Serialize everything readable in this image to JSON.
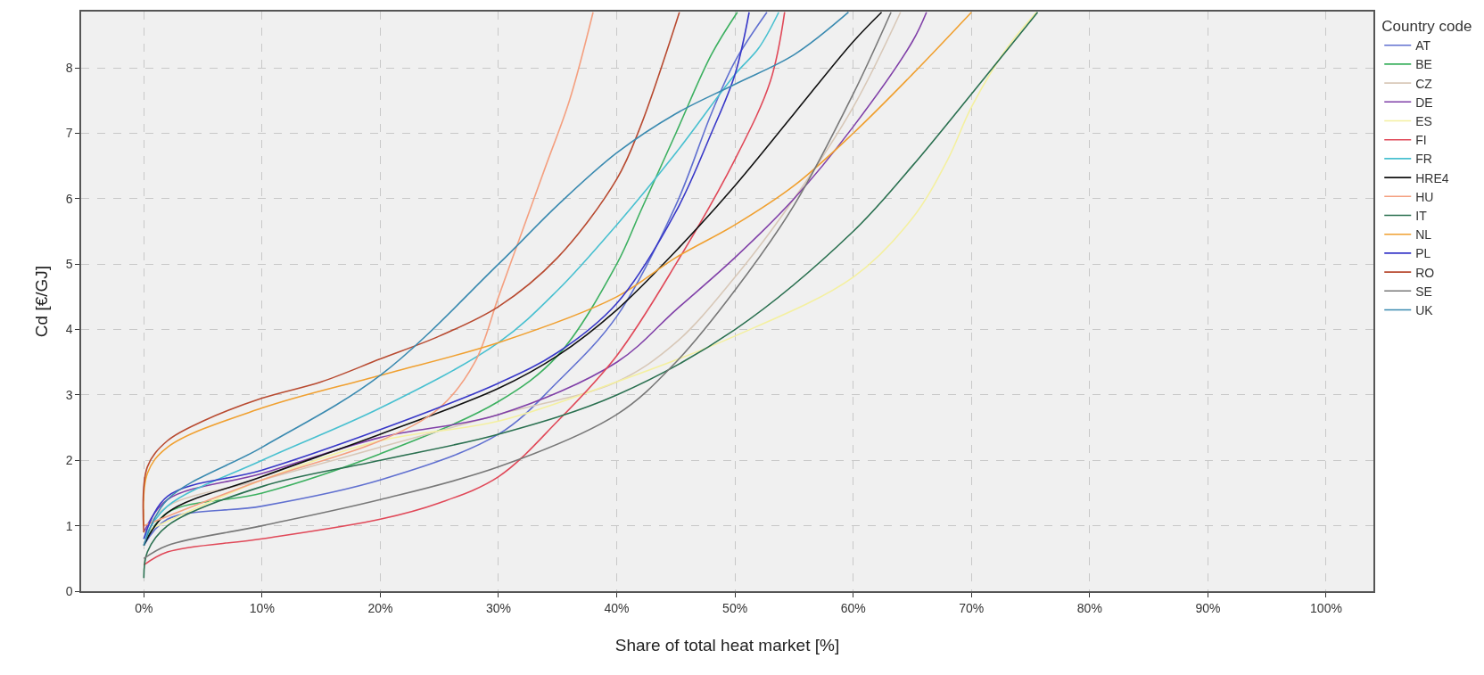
{
  "chart_data": {
    "type": "line",
    "xlabel": "Share of total heat market [%]",
    "ylabel": "Cd [€/GJ]",
    "legend_title": "Country code",
    "legend": "right",
    "grid": true,
    "line_style": "solid",
    "marker": "none",
    "xlim": [
      -5.3,
      104
    ],
    "ylim": [
      0,
      8.86
    ],
    "xticks": [
      {
        "value": 0,
        "label": "0%"
      },
      {
        "value": 10,
        "label": "10%"
      },
      {
        "value": 20,
        "label": "20%"
      },
      {
        "value": 30,
        "label": "30%"
      },
      {
        "value": 40,
        "label": "40%"
      },
      {
        "value": 50,
        "label": "50%"
      },
      {
        "value": 60,
        "label": "60%"
      },
      {
        "value": 70,
        "label": "70%"
      },
      {
        "value": 80,
        "label": "80%"
      },
      {
        "value": 90,
        "label": "90%"
      },
      {
        "value": 100,
        "label": "100%"
      }
    ],
    "yticks": [
      0,
      1,
      2,
      3,
      4,
      5,
      6,
      7,
      8
    ],
    "series": [
      {
        "name": "AT",
        "color": "#6070d0",
        "x": [
          0,
          2,
          10,
          20,
          30,
          35,
          40,
          45,
          48,
          50,
          52.7
        ],
        "values": [
          0.7,
          1.1,
          1.3,
          1.7,
          2.4,
          3.2,
          4.2,
          5.9,
          7.3,
          8.1,
          8.85
        ]
      },
      {
        "name": "BE",
        "color": "#3cb060",
        "x": [
          0,
          2,
          10,
          20,
          30,
          35,
          40,
          42,
          45,
          48,
          50.2
        ],
        "values": [
          0.7,
          1.2,
          1.5,
          2.1,
          2.9,
          3.6,
          5.0,
          5.8,
          7.0,
          8.2,
          8.85
        ]
      },
      {
        "name": "CZ",
        "color": "#d8c8b8",
        "x": [
          0,
          2,
          10,
          20,
          30,
          40,
          45,
          50,
          55,
          60,
          64
        ],
        "values": [
          0.9,
          1.3,
          1.7,
          2.2,
          2.7,
          3.2,
          3.8,
          4.8,
          6.0,
          7.4,
          8.85
        ]
      },
      {
        "name": "DE",
        "color": "#8040a8",
        "x": [
          0,
          2,
          10,
          20,
          30,
          40,
          45,
          50,
          55,
          60,
          65,
          66.2
        ],
        "values": [
          0.9,
          1.4,
          1.8,
          2.35,
          2.7,
          3.5,
          4.3,
          5.1,
          6.0,
          7.1,
          8.4,
          8.85
        ]
      },
      {
        "name": "ES",
        "color": "#f4f0a0",
        "x": [
          0,
          10,
          20,
          30,
          40,
          50,
          60,
          65,
          68,
          70,
          73,
          75.5
        ],
        "values": [
          0.9,
          1.7,
          2.3,
          2.6,
          3.2,
          3.9,
          4.8,
          5.7,
          6.6,
          7.4,
          8.3,
          8.85
        ]
      },
      {
        "name": "FI",
        "color": "#e04858",
        "x": [
          0,
          2,
          10,
          20,
          25,
          30,
          35,
          40,
          45,
          50,
          53,
          54.2
        ],
        "values": [
          0.4,
          0.6,
          0.8,
          1.1,
          1.35,
          1.75,
          2.6,
          3.6,
          5.0,
          6.6,
          7.8,
          8.85
        ]
      },
      {
        "name": "FR",
        "color": "#48c0d0",
        "x": [
          0,
          2,
          10,
          20,
          30,
          35,
          40,
          45,
          50,
          52,
          53.7
        ],
        "values": [
          0.8,
          1.3,
          2.0,
          2.8,
          3.8,
          4.6,
          5.6,
          6.7,
          7.9,
          8.3,
          8.85
        ]
      },
      {
        "name": "HRE4",
        "color": "#101010",
        "x": [
          0,
          2,
          10,
          20,
          30,
          35,
          40,
          45,
          50,
          55,
          60,
          62.4
        ],
        "values": [
          0.7,
          1.2,
          1.75,
          2.4,
          3.1,
          3.6,
          4.3,
          5.2,
          6.2,
          7.3,
          8.4,
          8.85
        ]
      },
      {
        "name": "HU",
        "color": "#f4a080",
        "x": [
          0,
          10,
          20,
          25,
          28,
          30,
          32,
          34,
          36,
          38
        ],
        "values": [
          1.0,
          1.7,
          2.3,
          2.8,
          3.5,
          4.5,
          5.5,
          6.5,
          7.5,
          8.85
        ]
      },
      {
        "name": "IT",
        "color": "#2a7050",
        "x": [
          0,
          0.3,
          2,
          10,
          20,
          30,
          40,
          50,
          60,
          65,
          70,
          75.6
        ],
        "values": [
          0.2,
          0.6,
          1.0,
          1.6,
          2.0,
          2.4,
          3.0,
          4.0,
          5.5,
          6.5,
          7.6,
          8.85
        ]
      },
      {
        "name": "NL",
        "color": "#f0a030",
        "x": [
          0,
          0.3,
          2,
          10,
          20,
          30,
          40,
          45,
          50,
          55,
          60,
          65,
          70
        ],
        "values": [
          1.0,
          1.8,
          2.2,
          2.8,
          3.3,
          3.8,
          4.5,
          5.1,
          5.6,
          6.2,
          7.0,
          7.9,
          8.85
        ]
      },
      {
        "name": "PL",
        "color": "#3838c8",
        "x": [
          0,
          2,
          10,
          20,
          30,
          35,
          40,
          45,
          48,
          50,
          51.2
        ],
        "values": [
          0.8,
          1.45,
          1.85,
          2.47,
          3.18,
          3.65,
          4.4,
          5.8,
          7.0,
          7.9,
          8.85
        ]
      },
      {
        "name": "RO",
        "color": "#b84a30",
        "x": [
          0,
          0.3,
          2,
          5,
          10,
          15,
          20,
          25,
          30,
          35,
          40,
          42,
          45.3
        ],
        "values": [
          0.9,
          1.9,
          2.3,
          2.6,
          2.95,
          3.2,
          3.55,
          3.9,
          4.35,
          5.1,
          6.3,
          7.1,
          8.85
        ]
      },
      {
        "name": "SE",
        "color": "#787878",
        "x": [
          0,
          2,
          10,
          20,
          30,
          40,
          45,
          50,
          55,
          60,
          63.2
        ],
        "values": [
          0.5,
          0.7,
          1.0,
          1.4,
          1.9,
          2.7,
          3.5,
          4.6,
          5.9,
          7.6,
          8.85
        ]
      },
      {
        "name": "UK",
        "color": "#3a8ab0",
        "x": [
          0,
          2,
          10,
          20,
          30,
          35,
          40,
          45,
          50,
          55,
          59.6
        ],
        "values": [
          0.7,
          1.4,
          2.2,
          3.3,
          5.0,
          5.9,
          6.7,
          7.3,
          7.75,
          8.2,
          8.85
        ]
      }
    ]
  }
}
